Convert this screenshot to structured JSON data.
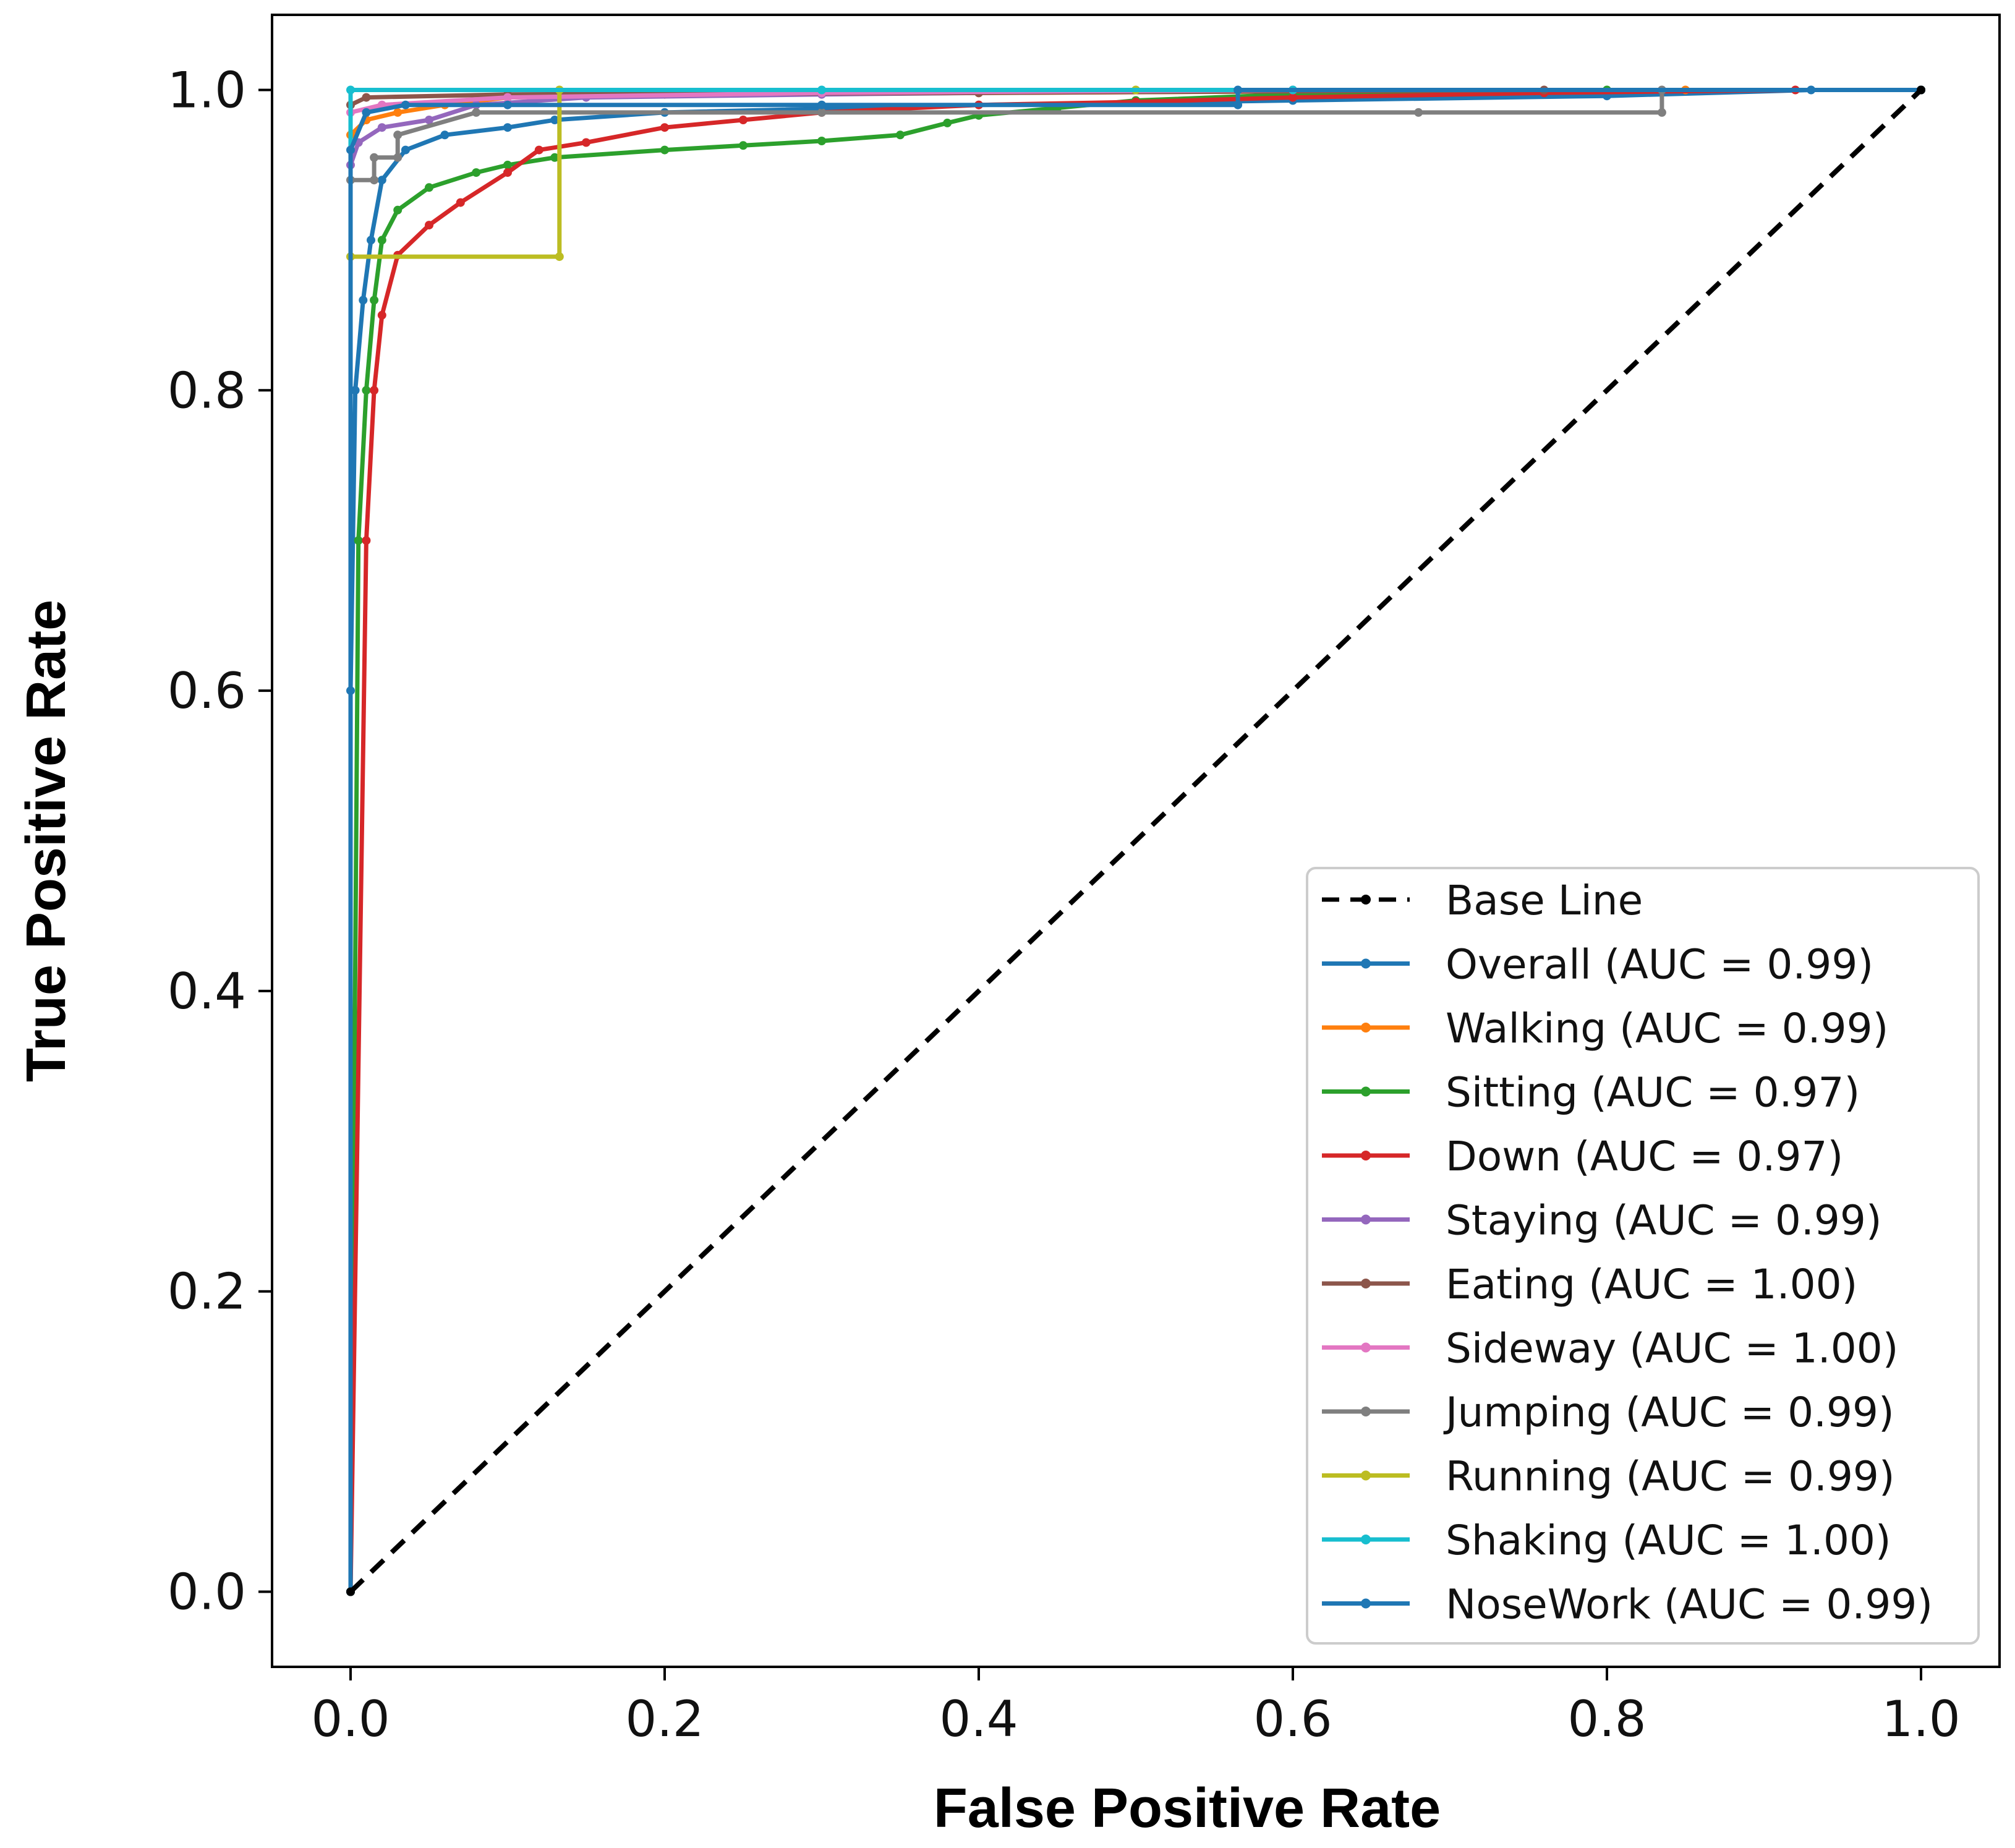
{
  "chart_data": {
    "type": "line",
    "title": "",
    "xlabel": "False Positive Rate",
    "ylabel": "True Positive Rate",
    "xlim": [
      -0.05,
      1.05
    ],
    "ylim": [
      -0.05,
      1.05
    ],
    "xticks": [
      0.0,
      0.2,
      0.4,
      0.6,
      0.8,
      1.0
    ],
    "yticks": [
      0.0,
      0.2,
      0.4,
      0.6,
      0.8,
      1.0
    ],
    "xtick_labels": [
      "0.0",
      "0.2",
      "0.4",
      "0.6",
      "0.8",
      "1.0"
    ],
    "ytick_labels": [
      "0.0",
      "0.2",
      "0.4",
      "0.6",
      "0.8",
      "1.0"
    ],
    "grid": false,
    "legend_position": "lower-right",
    "series": [
      {
        "name": "Base Line",
        "label": "Base Line",
        "color": "#000000",
        "dashed": true,
        "x": [
          0,
          1
        ],
        "y": [
          0,
          1
        ]
      },
      {
        "name": "Overall",
        "label": "Overall (AUC = 0.99)",
        "color": "#1f77b4",
        "x": [
          0,
          0,
          0.003,
          0.008,
          0.013,
          0.02,
          0.035,
          0.06,
          0.1,
          0.13,
          0.2,
          0.4,
          0.6,
          0.8,
          0.93,
          1.0
        ],
        "y": [
          0,
          0.6,
          0.8,
          0.86,
          0.9,
          0.94,
          0.96,
          0.97,
          0.975,
          0.98,
          0.985,
          0.99,
          0.993,
          0.996,
          1.0,
          1.0
        ]
      },
      {
        "name": "Walking",
        "label": "Walking (AUC = 0.99)",
        "color": "#ff7f0e",
        "x": [
          0,
          0,
          0.01,
          0.03,
          0.06,
          0.1,
          0.2,
          0.4,
          0.6,
          0.85,
          1.0
        ],
        "y": [
          0,
          0.97,
          0.98,
          0.985,
          0.99,
          0.995,
          0.997,
          0.998,
          0.999,
          1.0,
          1.0
        ]
      },
      {
        "name": "Sitting",
        "label": "Sitting (AUC = 0.97)",
        "color": "#2ca02c",
        "x": [
          0,
          0.005,
          0.01,
          0.015,
          0.02,
          0.03,
          0.05,
          0.08,
          0.1,
          0.13,
          0.2,
          0.25,
          0.3,
          0.35,
          0.38,
          0.4,
          0.45,
          0.5,
          0.6,
          0.8,
          1.0
        ],
        "y": [
          0,
          0.7,
          0.8,
          0.86,
          0.9,
          0.92,
          0.935,
          0.945,
          0.95,
          0.955,
          0.96,
          0.963,
          0.966,
          0.97,
          0.978,
          0.983,
          0.988,
          0.993,
          0.997,
          1.0,
          1.0
        ]
      },
      {
        "name": "Down",
        "label": "Down (AUC = 0.97)",
        "color": "#d62728",
        "x": [
          0,
          0.01,
          0.015,
          0.02,
          0.03,
          0.05,
          0.07,
          0.1,
          0.12,
          0.15,
          0.2,
          0.25,
          0.3,
          0.4,
          0.5,
          0.6,
          0.76,
          0.92,
          1.0
        ],
        "y": [
          0,
          0.7,
          0.8,
          0.85,
          0.89,
          0.91,
          0.925,
          0.945,
          0.96,
          0.965,
          0.975,
          0.98,
          0.985,
          0.99,
          0.992,
          0.995,
          0.998,
          1.0,
          1.0
        ]
      },
      {
        "name": "Staying",
        "label": "Staying (AUC = 0.99)",
        "color": "#9467bd",
        "x": [
          0,
          0,
          0.005,
          0.02,
          0.05,
          0.08,
          0.15,
          0.3,
          0.6,
          1.0
        ],
        "y": [
          0,
          0.95,
          0.965,
          0.975,
          0.98,
          0.99,
          0.995,
          0.997,
          1.0,
          1.0
        ]
      },
      {
        "name": "Eating",
        "label": "Eating (AUC = 1.00)",
        "color": "#8c564b",
        "x": [
          0,
          0,
          0.01,
          0.1,
          0.4,
          0.76,
          1.0
        ],
        "y": [
          0,
          0.99,
          0.995,
          0.997,
          0.998,
          1.0,
          1.0
        ]
      },
      {
        "name": "Sideway",
        "label": "Sideway (AUC = 1.00)",
        "color": "#e377c2",
        "x": [
          0,
          0,
          0.02,
          0.1,
          0.3,
          0.6,
          1.0
        ],
        "y": [
          0,
          0.985,
          0.99,
          0.995,
          0.998,
          1.0,
          1.0
        ]
      },
      {
        "name": "Jumping",
        "label": "Jumping (AUC = 0.99)",
        "color": "#7f7f7f",
        "x": [
          0,
          0,
          0.015,
          0.015,
          0.03,
          0.03,
          0.08,
          0.3,
          0.68,
          0.835,
          0.835,
          1.0
        ],
        "y": [
          0,
          0.94,
          0.94,
          0.955,
          0.955,
          0.97,
          0.985,
          0.985,
          0.985,
          0.985,
          1.0,
          1.0
        ]
      },
      {
        "name": "Running",
        "label": "Running (AUC = 0.99)",
        "color": "#bcbd22",
        "x": [
          0,
          0,
          0.133,
          0.133,
          0.5,
          1.0
        ],
        "y": [
          0,
          0.889,
          0.889,
          1.0,
          1.0,
          1.0
        ]
      },
      {
        "name": "Shaking",
        "label": "Shaking (AUC = 1.00)",
        "color": "#17becf",
        "x": [
          0,
          0,
          0.3,
          0.6,
          1.0
        ],
        "y": [
          0,
          1.0,
          1.0,
          1.0,
          1.0
        ]
      },
      {
        "name": "NoseWork",
        "label": "NoseWork (AUC = 0.99)",
        "color": "#1f77b4",
        "x": [
          0,
          0,
          0.01,
          0.035,
          0.1,
          0.3,
          0.565,
          0.565,
          1.0
        ],
        "y": [
          0,
          0.96,
          0.985,
          0.99,
          0.99,
          0.99,
          0.99,
          1.0,
          1.0
        ]
      }
    ]
  }
}
